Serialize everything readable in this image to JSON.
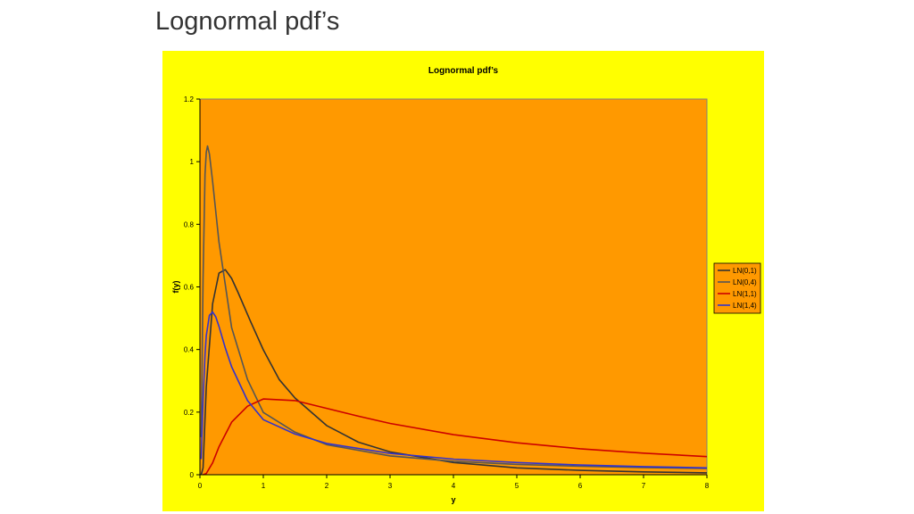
{
  "slide": {
    "title": "Lognormal pdf’s"
  },
  "chart_data": {
    "type": "line",
    "title": "Lognormal pdf’s",
    "xlabel": "y",
    "ylabel": "f(y)",
    "xlim": [
      0,
      8
    ],
    "ylim": [
      0,
      1.2
    ],
    "x_ticks": [
      "0",
      "1",
      "2",
      "3",
      "4",
      "5",
      "6",
      "7",
      "8"
    ],
    "y_ticks": [
      "0",
      "0.2",
      "0.4",
      "0.6",
      "0.8",
      "1",
      "1.2"
    ],
    "grid": false,
    "legend_position": "right",
    "background": "#ffff00",
    "plot_background": "#ff9900",
    "series": [
      {
        "name": "LN(0,1)",
        "color": "#333333",
        "x": [
          0.02,
          0.05,
          0.1,
          0.2,
          0.3,
          0.4,
          0.5,
          0.6,
          0.8,
          1,
          1.25,
          1.5,
          2,
          2.5,
          3,
          4,
          5,
          6,
          7,
          8
        ],
        "y": [
          0.0,
          0.022,
          0.281,
          0.546,
          0.644,
          0.655,
          0.627,
          0.583,
          0.489,
          0.399,
          0.304,
          0.245,
          0.157,
          0.104,
          0.073,
          0.039,
          0.022,
          0.014,
          0.009,
          0.006
        ]
      },
      {
        "name": "LN(0,4)",
        "color": "#555555",
        "x": [
          0.02,
          0.05,
          0.08,
          0.1,
          0.12,
          0.15,
          0.2,
          0.3,
          0.5,
          0.75,
          1,
          1.5,
          2,
          3,
          4,
          5,
          6,
          7,
          8
        ],
        "y": [
          0.12,
          0.624,
          0.96,
          1.03,
          1.05,
          1.025,
          0.937,
          0.744,
          0.47,
          0.304,
          0.199,
          0.136,
          0.096,
          0.06,
          0.043,
          0.033,
          0.027,
          0.023,
          0.02
        ]
      },
      {
        "name": "LN(1,1)",
        "color": "#cc0000",
        "x": [
          0.05,
          0.1,
          0.2,
          0.3,
          0.5,
          0.75,
          1,
          1.5,
          2,
          2.5,
          3,
          4,
          5,
          6,
          7,
          8
        ],
        "y": [
          0.0,
          0.004,
          0.038,
          0.089,
          0.168,
          0.219,
          0.242,
          0.237,
          0.212,
          0.187,
          0.164,
          0.128,
          0.102,
          0.083,
          0.069,
          0.058
        ]
      },
      {
        "name": "LN(1,4)",
        "color": "#3333cc",
        "x": [
          0.02,
          0.05,
          0.08,
          0.1,
          0.15,
          0.2,
          0.25,
          0.3,
          0.4,
          0.5,
          0.75,
          1,
          1.5,
          2,
          3,
          4,
          5,
          6,
          7,
          8
        ],
        "y": [
          0.05,
          0.24,
          0.383,
          0.444,
          0.509,
          0.52,
          0.504,
          0.474,
          0.405,
          0.345,
          0.237,
          0.176,
          0.13,
          0.1,
          0.068,
          0.05,
          0.039,
          0.031,
          0.026,
          0.022
        ]
      }
    ]
  }
}
